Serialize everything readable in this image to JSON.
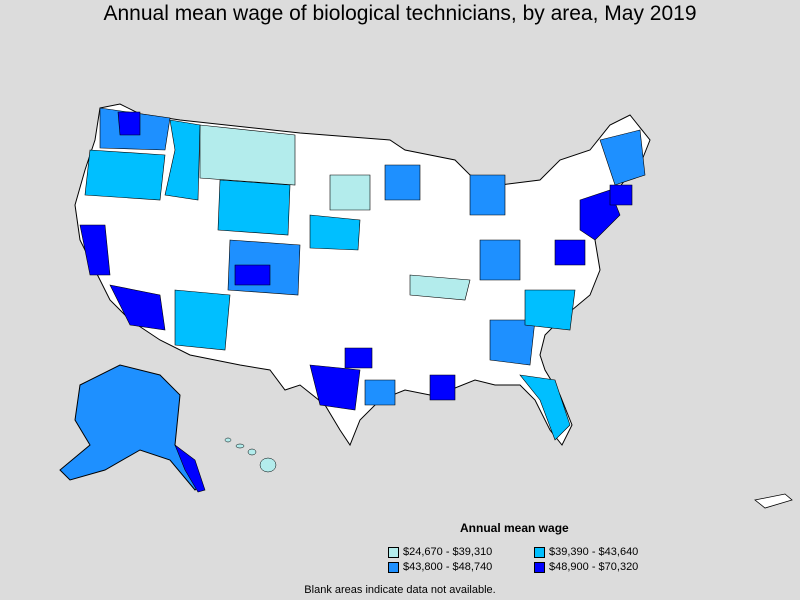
{
  "title": "Annual mean wage of biological technicians, by area, May 2019",
  "legend": {
    "title": "Annual mean wage",
    "items": [
      {
        "label": "$24,670 - $39,310",
        "color": "#b3ecec"
      },
      {
        "label": "$39,390 - $43,640",
        "color": "#00bfff"
      },
      {
        "label": "$43,800 - $48,740",
        "color": "#1e90ff"
      },
      {
        "label": "$48,900 - $70,320",
        "color": "#0000ff"
      }
    ]
  },
  "footnote": "Blank areas indicate data not available.",
  "colors": {
    "background": "#dcdcdc",
    "blank": "#ffffff",
    "border": "#000000"
  }
}
